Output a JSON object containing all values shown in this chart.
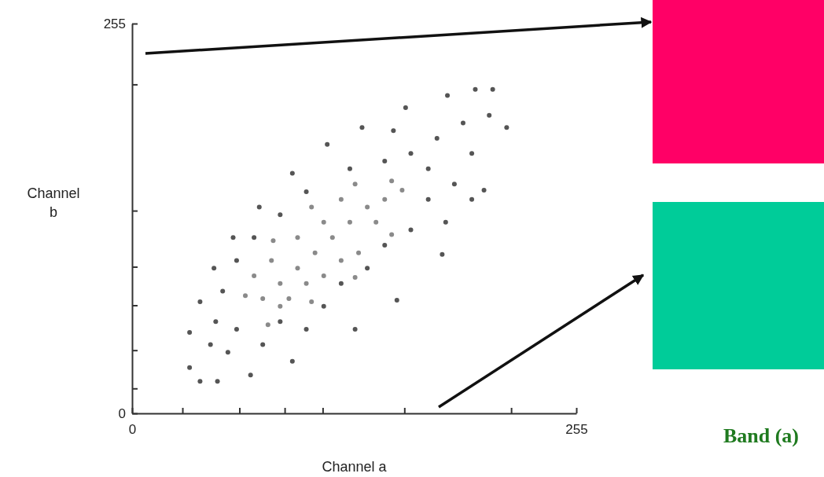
{
  "chart_data": {
    "type": "scatter",
    "xlabel": "Channel a",
    "ylabel": "Channel b",
    "xlim": [
      0,
      255
    ],
    "ylim": [
      0,
      255
    ],
    "xticks": [
      0,
      {
        "value": 28.9,
        "label": null
      },
      {
        "value": 61.6,
        "label": null
      },
      {
        "value": 87.6,
        "label": null
      },
      {
        "value": 109.4,
        "label": null
      },
      {
        "value": 156.3,
        "label": null
      },
      {
        "value": 217.6,
        "label": null
      },
      255
    ],
    "yticks": [
      0,
      {
        "value": 16.3,
        "label": null
      },
      {
        "value": 41.3,
        "label": null
      },
      {
        "value": 70.7,
        "label": null
      },
      {
        "value": 95.9,
        "label": null
      },
      {
        "value": 132.6,
        "label": null
      },
      {
        "value": 215.2,
        "label": null
      },
      255
    ],
    "marker": "circle",
    "grid": false,
    "annotations": [
      "Band (a)"
    ],
    "series": [
      {
        "color": "#555555",
        "x": [
          33,
          33,
          39,
          49,
          68,
          92,
          128,
          152,
          178,
          202,
          215,
          207,
          197,
          181,
          157,
          132,
          112,
          92,
          73,
          58,
          47,
          39,
          45,
          55,
          60,
          75,
          85,
          100,
          110,
          120,
          135,
          145,
          160,
          170,
          185,
          195,
          205,
          190,
          175,
          160,
          145,
          125,
          100,
          85,
          70,
          60,
          52,
          48,
          170,
          180,
          195,
          150
        ],
        "values": [
          53,
          30,
          21,
          21,
          25,
          34,
          55,
          74,
          104,
          146,
          187,
          212,
          212,
          208,
          200,
          187,
          176,
          157,
          135,
          115,
          95,
          73,
          45,
          40,
          55,
          45,
          60,
          55,
          70,
          85,
          95,
          110,
          120,
          140,
          150,
          170,
          195,
          190,
          180,
          170,
          165,
          160,
          145,
          130,
          115,
          100,
          80,
          60,
          160,
          125,
          140,
          185
        ]
      },
      {
        "color": "#8a8a8a",
        "x": [
          65,
          81,
          103,
          128,
          149,
          155,
          149,
          128,
          103,
          78,
          75,
          85,
          95,
          105,
          115,
          125,
          135,
          145,
          90,
          110,
          130,
          140,
          80,
          95,
          110,
          120,
          100,
          120,
          70,
          85
        ],
        "values": [
          77,
          113,
          135,
          150,
          152,
          146,
          117,
          89,
          73,
          58,
          75,
          85,
          95,
          105,
          115,
          125,
          135,
          140,
          75,
          90,
          105,
          125,
          100,
          115,
          125,
          140,
          85,
          100,
          90,
          70
        ]
      }
    ]
  }
}
